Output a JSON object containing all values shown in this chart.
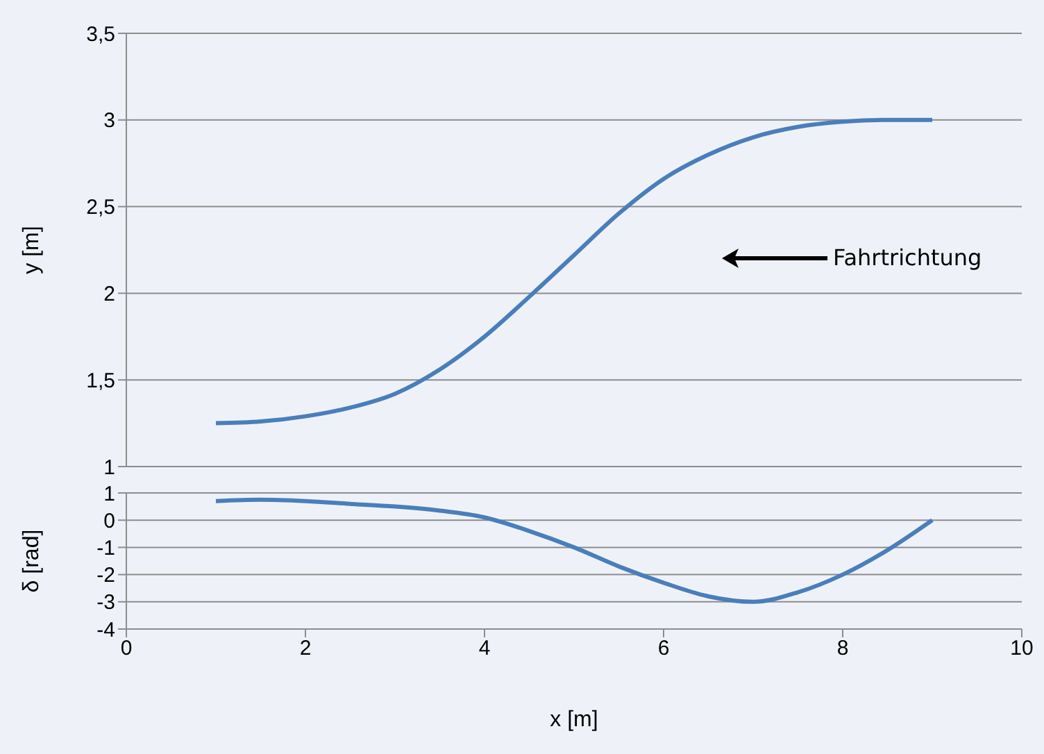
{
  "chart_data": [
    {
      "type": "line",
      "ylabel": "y [m]",
      "x": [
        1,
        1.5,
        2,
        2.5,
        3,
        3.5,
        4,
        4.5,
        5,
        5.5,
        6,
        6.5,
        7,
        7.5,
        8,
        8.5,
        9
      ],
      "series": [
        {
          "color": "#4a7ebb",
          "values": [
            1.25,
            1.26,
            1.29,
            1.34,
            1.42,
            1.56,
            1.75,
            1.98,
            2.22,
            2.46,
            2.66,
            2.8,
            2.9,
            2.96,
            2.99,
            3.0,
            3.0
          ]
        }
      ],
      "xlim": [
        0,
        10
      ],
      "xticks": [
        0,
        2,
        4,
        6,
        8,
        10
      ],
      "ylim": [
        1,
        3.5
      ],
      "yticks": [
        1,
        {
          "value": 1.5,
          "label": "1,5"
        },
        2,
        {
          "value": 2.5,
          "label": "2,5"
        },
        3,
        {
          "value": 3.5,
          "label": "3,5"
        }
      ],
      "tick_labels": "y",
      "grid": "y",
      "marker": "none",
      "line_style": "solid",
      "legend": false,
      "annotations": [
        "Fahrtrichtung"
      ]
    },
    {
      "type": "line",
      "xlabel": "x [m]",
      "ylabel": "δ [rad]",
      "x": [
        1,
        1.5,
        2,
        2.5,
        3,
        3.5,
        4,
        4.5,
        5,
        5.5,
        6,
        6.5,
        7,
        7.5,
        8,
        8.5,
        9
      ],
      "series": [
        {
          "color": "#4a7ebb",
          "values": [
            0.7,
            0.75,
            0.7,
            0.6,
            0.5,
            0.35,
            0.1,
            -0.4,
            -1.0,
            -1.7,
            -2.3,
            -2.8,
            -3.0,
            -2.65,
            -2.0,
            -1.1,
            0
          ]
        }
      ],
      "xlim": [
        0,
        10
      ],
      "xticks": [
        0,
        2,
        4,
        6,
        8,
        10
      ],
      "ylim": [
        -4,
        1
      ],
      "yticks": [
        -4,
        -3,
        -2,
        -1,
        0,
        1
      ],
      "grid": "y",
      "marker": "none",
      "line_style": "solid",
      "legend": false
    }
  ]
}
